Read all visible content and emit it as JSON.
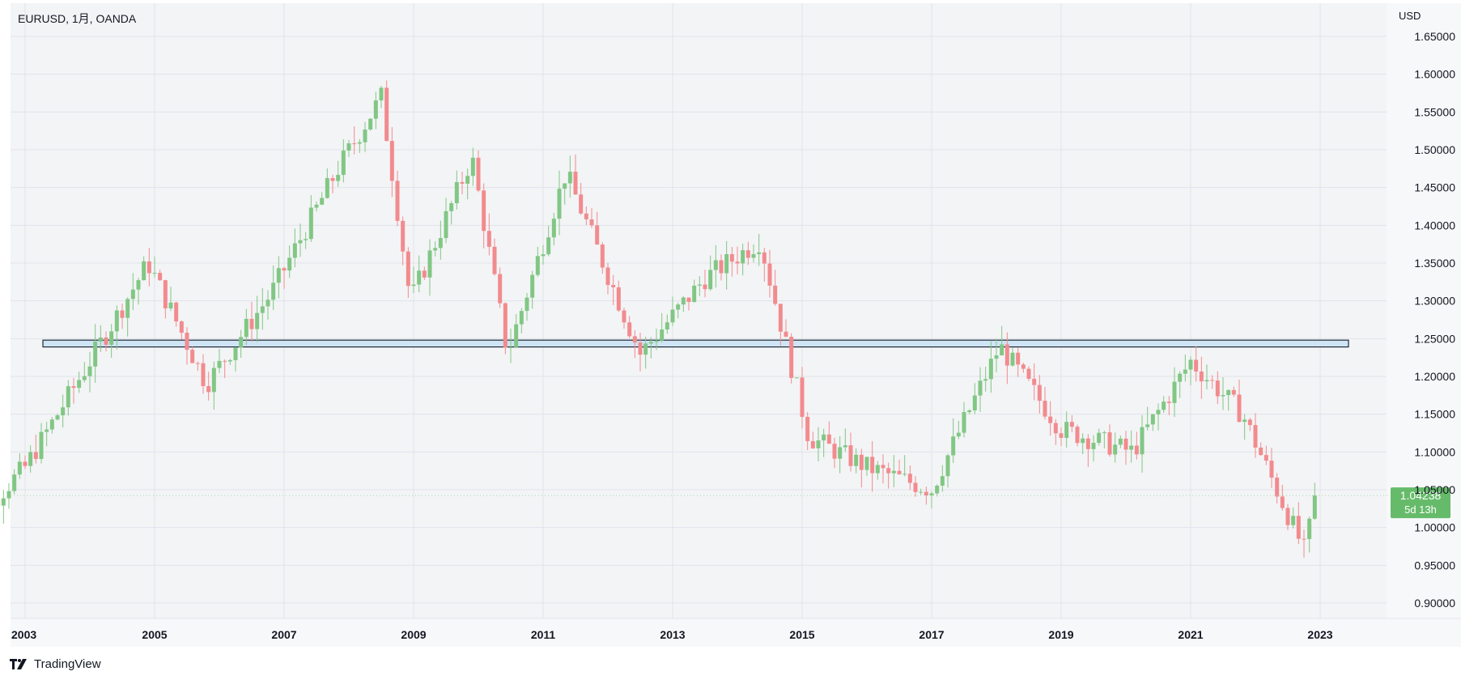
{
  "header": {
    "symbol_title": "EURUSD, 1月, OANDA"
  },
  "footer": {
    "brand": "TradingView"
  },
  "chart_data": {
    "type": "candlestick",
    "currency": "USD",
    "ylim": [
      0.875,
      1.675
    ],
    "y_ticks": [
      "1.65000",
      "1.60000",
      "1.55000",
      "1.50000",
      "1.45000",
      "1.40000",
      "1.35000",
      "1.30000",
      "1.25000",
      "1.20000",
      "1.15000",
      "1.10000",
      "1.05000",
      "1.00000",
      "0.95000",
      "0.90000"
    ],
    "x_ticks": [
      "2003",
      "2005",
      "2007",
      "2009",
      "2011",
      "2013",
      "2015",
      "2017",
      "2019",
      "2021",
      "2023"
    ],
    "last_price": "1.04238",
    "countdown": "5d 13h",
    "horizontal_band": [
      1.239,
      1.248
    ],
    "colors": {
      "up": "#81c784",
      "down": "#f28b8e",
      "band_border": "#1e2a3a",
      "band_fill": "#cfe4f4",
      "last_price_bg": "#66bb6a",
      "last_price_line": "#a5d6a7",
      "plot_bg": "#f3f4f6",
      "grid": "#e0e3eb",
      "axis_text": "#131722"
    },
    "yearly_path": [
      {
        "year": 2002,
        "value": 0.99
      },
      {
        "year": 2003,
        "value": 1.08
      },
      {
        "year": 2004,
        "value": 1.22
      },
      {
        "year": 2004.9,
        "value": 1.35
      },
      {
        "year": 2005.8,
        "value": 1.19
      },
      {
        "year": 2006.8,
        "value": 1.31
      },
      {
        "year": 2007.8,
        "value": 1.47
      },
      {
        "year": 2008.5,
        "value": 1.57
      },
      {
        "year": 2008.95,
        "value": 1.3
      },
      {
        "year": 2009.9,
        "value": 1.49
      },
      {
        "year": 2010.45,
        "value": 1.23
      },
      {
        "year": 2011.35,
        "value": 1.47
      },
      {
        "year": 2012.5,
        "value": 1.23
      },
      {
        "year": 2013.5,
        "value": 1.33
      },
      {
        "year": 2014.35,
        "value": 1.38
      },
      {
        "year": 2015.1,
        "value": 1.12
      },
      {
        "year": 2016.0,
        "value": 1.08
      },
      {
        "year": 2017.0,
        "value": 1.05
      },
      {
        "year": 2018.05,
        "value": 1.24
      },
      {
        "year": 2019.0,
        "value": 1.13
      },
      {
        "year": 2020.1,
        "value": 1.1
      },
      {
        "year": 2021.0,
        "value": 1.22
      },
      {
        "year": 2021.8,
        "value": 1.15
      },
      {
        "year": 2022.75,
        "value": 0.97
      },
      {
        "year": 2022.95,
        "value": 1.04
      }
    ]
  }
}
